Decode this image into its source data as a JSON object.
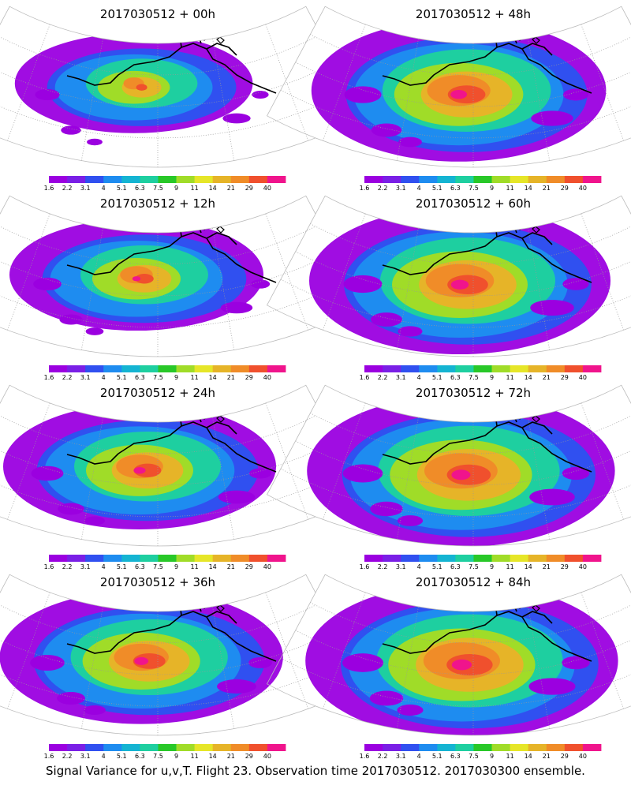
{
  "figure": {
    "caption": "Signal Variance for u,v,T. Flight 23. Observation time 2017030512. 2017030300 ensemble."
  },
  "panels": [
    {
      "title": "2017030512 + 00h",
      "intensity": 0.18
    },
    {
      "title": "2017030512 + 48h",
      "intensity": 0.78
    },
    {
      "title": "2017030512 + 12h",
      "intensity": 0.35
    },
    {
      "title": "2017030512 + 60h",
      "intensity": 0.85
    },
    {
      "title": "2017030512 + 24h",
      "intensity": 0.55
    },
    {
      "title": "2017030512 + 72h",
      "intensity": 0.92
    },
    {
      "title": "2017030512 + 36h",
      "intensity": 0.66
    },
    {
      "title": "2017030512 + 84h",
      "intensity": 0.97
    }
  ],
  "colorbar": {
    "labels": [
      "1.6",
      "2.2",
      "3.1",
      "4",
      "5.1",
      "6.3",
      "7.5",
      "9",
      "11",
      "14",
      "21",
      "29",
      "40"
    ],
    "colors": [
      "#9b00e0",
      "#7a1fe6",
      "#3050f0",
      "#1e8cf0",
      "#14b4d2",
      "#1ecfa0",
      "#28c828",
      "#a0dc28",
      "#e6e628",
      "#e6b428",
      "#f08c28",
      "#f0502d",
      "#f0148c"
    ]
  }
}
